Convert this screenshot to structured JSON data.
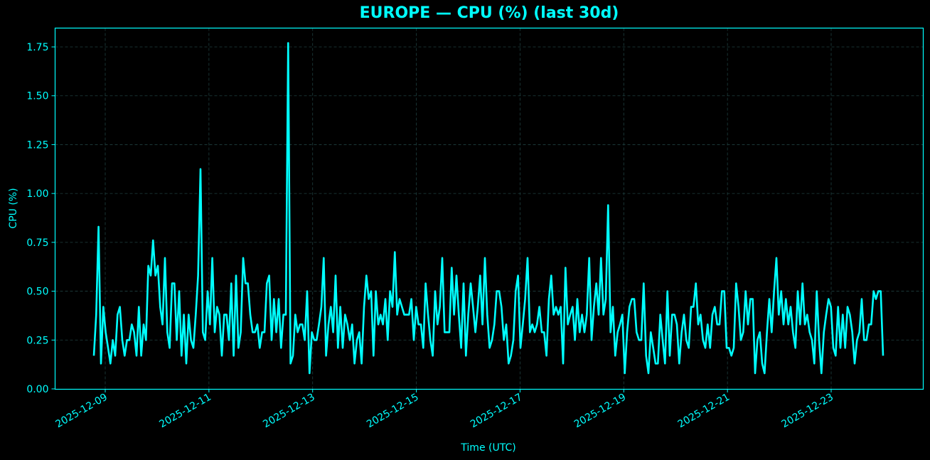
{
  "chart_data": {
    "type": "line",
    "title": "EUROPE — CPU (%) (last 30d)",
    "xlabel": "Time (UTC)",
    "ylabel": "CPU (%)",
    "ylim": [
      0,
      1.85
    ],
    "yticks": [
      0.0,
      0.25,
      0.5,
      0.75,
      1.0,
      1.25,
      1.5,
      1.75
    ],
    "ytick_labels": [
      "0.00",
      "0.25",
      "0.50",
      "0.75",
      "1.00",
      "1.25",
      "1.50",
      "1.75"
    ],
    "xtick_labels": [
      "2025-12-09",
      "2025-12-11",
      "2025-12-13",
      "2025-12-15",
      "2025-12-17",
      "2025-12-19",
      "2025-12-21",
      "2025-12-23"
    ],
    "xtick_day_offsets": [
      0,
      2,
      4,
      6,
      8,
      10,
      12,
      14
    ],
    "x_start_day_offset": -0.22,
    "x_step_hours": 2,
    "grid": true,
    "legend": null,
    "colors": {
      "background": "#000000",
      "line": "#00ffff",
      "axes": "#00ffff",
      "grid": "#1f4040"
    },
    "series": [
      {
        "name": "CPU (%)",
        "values": [
          0.17,
          0.38,
          0.83,
          0.13,
          0.42,
          0.29,
          0.21,
          0.13,
          0.25,
          0.17,
          0.38,
          0.42,
          0.25,
          0.17,
          0.25,
          0.25,
          0.33,
          0.29,
          0.17,
          0.42,
          0.17,
          0.33,
          0.25,
          0.63,
          0.58,
          0.76,
          0.58,
          0.63,
          0.42,
          0.33,
          0.67,
          0.29,
          0.21,
          0.54,
          0.54,
          0.25,
          0.5,
          0.17,
          0.38,
          0.13,
          0.38,
          0.25,
          0.21,
          0.38,
          0.58,
          1.125,
          0.29,
          0.25,
          0.5,
          0.33,
          0.67,
          0.29,
          0.42,
          0.38,
          0.17,
          0.38,
          0.38,
          0.25,
          0.54,
          0.17,
          0.58,
          0.21,
          0.29,
          0.67,
          0.54,
          0.54,
          0.38,
          0.29,
          0.29,
          0.33,
          0.21,
          0.29,
          0.29,
          0.54,
          0.58,
          0.25,
          0.46,
          0.29,
          0.46,
          0.21,
          0.38,
          0.38,
          1.77,
          0.13,
          0.17,
          0.38,
          0.29,
          0.33,
          0.33,
          0.25,
          0.5,
          0.08,
          0.29,
          0.25,
          0.25,
          0.33,
          0.42,
          0.67,
          0.17,
          0.33,
          0.42,
          0.29,
          0.58,
          0.21,
          0.42,
          0.21,
          0.38,
          0.33,
          0.25,
          0.33,
          0.13,
          0.25,
          0.29,
          0.13,
          0.42,
          0.58,
          0.46,
          0.5,
          0.17,
          0.5,
          0.33,
          0.38,
          0.33,
          0.46,
          0.25,
          0.5,
          0.42,
          0.7,
          0.38,
          0.46,
          0.42,
          0.38,
          0.38,
          0.38,
          0.46,
          0.25,
          0.42,
          0.33,
          0.33,
          0.21,
          0.54,
          0.38,
          0.25,
          0.17,
          0.5,
          0.33,
          0.42,
          0.67,
          0.29,
          0.29,
          0.29,
          0.62,
          0.38,
          0.58,
          0.38,
          0.21,
          0.54,
          0.17,
          0.38,
          0.54,
          0.42,
          0.29,
          0.42,
          0.58,
          0.33,
          0.67,
          0.38,
          0.21,
          0.25,
          0.33,
          0.5,
          0.5,
          0.42,
          0.25,
          0.33,
          0.13,
          0.17,
          0.25,
          0.5,
          0.58,
          0.21,
          0.33,
          0.46,
          0.67,
          0.29,
          0.33,
          0.29,
          0.33,
          0.42,
          0.29,
          0.29,
          0.17,
          0.46,
          0.58,
          0.38,
          0.42,
          0.38,
          0.42,
          0.13,
          0.62,
          0.33,
          0.38,
          0.42,
          0.25,
          0.46,
          0.29,
          0.38,
          0.29,
          0.38,
          0.67,
          0.25,
          0.42,
          0.54,
          0.38,
          0.67,
          0.38,
          0.46,
          0.94,
          0.29,
          0.42,
          0.17,
          0.29,
          0.33,
          0.38,
          0.08,
          0.29,
          0.42,
          0.46,
          0.46,
          0.29,
          0.25,
          0.25,
          0.54,
          0.17,
          0.08,
          0.29,
          0.21,
          0.13,
          0.13,
          0.38,
          0.25,
          0.13,
          0.5,
          0.17,
          0.38,
          0.38,
          0.33,
          0.13,
          0.29,
          0.38,
          0.25,
          0.21,
          0.42,
          0.42,
          0.54,
          0.33,
          0.38,
          0.25,
          0.21,
          0.33,
          0.21,
          0.38,
          0.42,
          0.33,
          0.33,
          0.5,
          0.5,
          0.21,
          0.21,
          0.17,
          0.21,
          0.54,
          0.42,
          0.25,
          0.29,
          0.5,
          0.33,
          0.46,
          0.46,
          0.08,
          0.25,
          0.29,
          0.13,
          0.08,
          0.29,
          0.46,
          0.29,
          0.5,
          0.67,
          0.38,
          0.5,
          0.33,
          0.46,
          0.33,
          0.42,
          0.29,
          0.21,
          0.5,
          0.33,
          0.54,
          0.33,
          0.38,
          0.29,
          0.25,
          0.13,
          0.5,
          0.25,
          0.08,
          0.29,
          0.38,
          0.46,
          0.42,
          0.21,
          0.17,
          0.42,
          0.21,
          0.38,
          0.21,
          0.42,
          0.38,
          0.29,
          0.13,
          0.25,
          0.29,
          0.46,
          0.25,
          0.25,
          0.33,
          0.33,
          0.5,
          0.46,
          0.5,
          0.5,
          0.17
        ]
      }
    ]
  }
}
